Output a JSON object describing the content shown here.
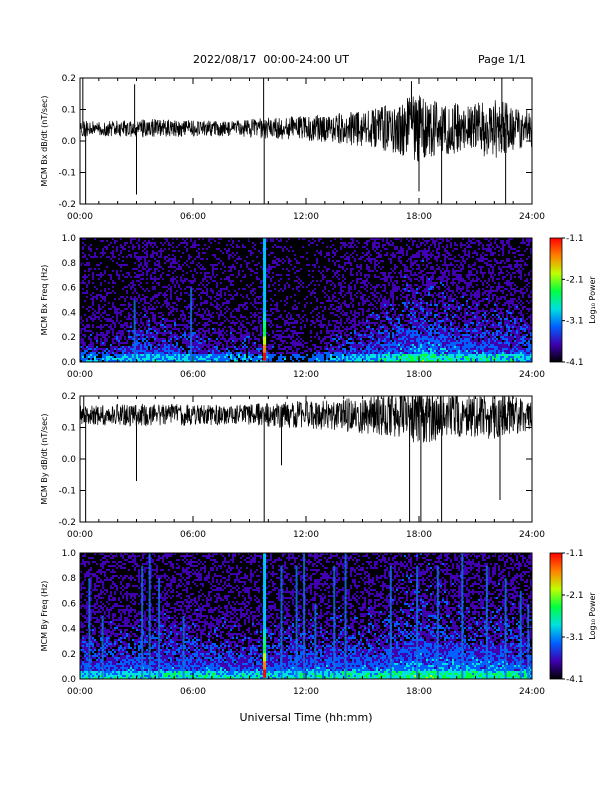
{
  "header": {
    "date_range": "2022/08/17  00:00-24:00 UT",
    "page": "Page 1/1"
  },
  "xlabel": "Universal Time (hh:mm)",
  "chart_data": [
    {
      "type": "line",
      "ylabel": "MCM Bx dB/dt (nT/sec)",
      "xlim": [
        0,
        24
      ],
      "ylim": [
        -0.2,
        0.2
      ],
      "xticks": [
        "00:00",
        "06:00",
        "12:00",
        "18:00",
        "24:00"
      ],
      "yticks": [
        "-0.2",
        "-0.1",
        "0.0",
        "0.1",
        "0.2"
      ],
      "baseline": 0.04,
      "envelope": {
        "x": [
          0,
          2,
          4,
          6,
          8,
          10,
          12,
          14,
          15,
          16,
          17,
          18,
          19,
          20,
          21,
          22,
          23,
          24
        ],
        "half": [
          0.025,
          0.025,
          0.03,
          0.025,
          0.025,
          0.035,
          0.04,
          0.05,
          0.06,
          0.07,
          0.09,
          0.11,
          0.09,
          0.08,
          0.08,
          0.1,
          0.07,
          0.06
        ]
      },
      "spikes": [
        [
          0.15,
          0.2
        ],
        [
          0.3,
          -0.2
        ],
        [
          2.9,
          0.18
        ],
        [
          3.0,
          -0.17
        ],
        [
          9.75,
          0.2
        ],
        [
          9.78,
          -0.2
        ],
        [
          17.6,
          0.19
        ],
        [
          18.0,
          -0.16
        ],
        [
          19.2,
          -0.2
        ],
        [
          22.4,
          0.2
        ],
        [
          22.6,
          -0.2
        ]
      ]
    },
    {
      "type": "heatmap",
      "ylabel": "MCM Bx Freq (Hz)",
      "xlim": [
        0,
        24
      ],
      "ylim": [
        0,
        1.0
      ],
      "xticks": [
        "00:00",
        "06:00",
        "12:00",
        "18:00",
        "24:00"
      ],
      "yticks": [
        "0.0",
        "0.2",
        "0.4",
        "0.6",
        "0.8",
        "1.0"
      ],
      "colorbar": {
        "label": "Log₁₀ Power",
        "range": [
          -4.1,
          -1.1
        ],
        "ticks": [
          "-1.1",
          "-2.1",
          "-3.1",
          "-4.1"
        ],
        "colors": [
          "#000000",
          "#4000b0",
          "#0060ff",
          "#00e0e0",
          "#00ff40",
          "#c0ff00",
          "#ff8000",
          "#ff0000"
        ]
      },
      "activity": {
        "x": [
          0,
          2,
          3,
          6,
          8,
          10,
          12,
          14,
          16,
          18,
          20,
          22,
          24
        ],
        "level": [
          0.35,
          0.35,
          0.5,
          0.45,
          0.35,
          0.3,
          0.2,
          0.45,
          0.55,
          0.75,
          0.6,
          0.6,
          0.5
        ]
      },
      "streaks": [
        [
          2.9,
          0.5
        ],
        [
          5.9,
          0.6
        ],
        [
          9.8,
          1.0
        ]
      ]
    },
    {
      "type": "line",
      "ylabel": "MCM By dB/dt (nT/sec)",
      "xlim": [
        0,
        24
      ],
      "ylim": [
        -0.2,
        0.2
      ],
      "xticks": [
        "00:00",
        "06:00",
        "12:00",
        "18:00",
        "24:00"
      ],
      "yticks": [
        "-0.2",
        "-0.1",
        "0.0",
        "0.1",
        "0.2"
      ],
      "baseline": 0.14,
      "envelope": {
        "x": [
          0,
          2,
          4,
          6,
          8,
          10,
          12,
          14,
          15,
          16,
          17,
          18,
          19,
          20,
          21,
          22,
          23,
          24
        ],
        "half": [
          0.03,
          0.035,
          0.035,
          0.035,
          0.03,
          0.04,
          0.045,
          0.05,
          0.06,
          0.07,
          0.08,
          0.1,
          0.08,
          0.07,
          0.07,
          0.08,
          0.06,
          0.05
        ]
      },
      "spikes": [
        [
          0.2,
          0.2
        ],
        [
          0.3,
          -0.2
        ],
        [
          3.0,
          -0.07
        ],
        [
          9.78,
          -0.2
        ],
        [
          10.7,
          -0.02
        ],
        [
          17.5,
          -0.2
        ],
        [
          18.1,
          -0.2
        ],
        [
          19.2,
          -0.2
        ],
        [
          22.3,
          -0.13
        ]
      ]
    },
    {
      "type": "heatmap",
      "ylabel": "MCM By Freq (Hz)",
      "xlim": [
        0,
        24
      ],
      "ylim": [
        0,
        1.0
      ],
      "xticks": [
        "00:00",
        "06:00",
        "12:00",
        "18:00",
        "24:00"
      ],
      "yticks": [
        "0.0",
        "0.2",
        "0.4",
        "0.6",
        "0.8",
        "1.0"
      ],
      "colorbar": {
        "label": "Log₁₀ Power",
        "range": [
          -4.1,
          -1.1
        ],
        "ticks": [
          "-1.1",
          "-2.1",
          "-3.1",
          "-4.1"
        ],
        "colors": [
          "#000000",
          "#4000b0",
          "#0060ff",
          "#00e0e0",
          "#00ff40",
          "#c0ff00",
          "#ff8000",
          "#ff0000"
        ]
      },
      "activity": {
        "x": [
          0,
          2,
          4,
          6,
          8,
          10,
          12,
          14,
          16,
          18,
          20,
          22,
          24
        ],
        "level": [
          0.55,
          0.55,
          0.6,
          0.6,
          0.55,
          0.55,
          0.6,
          0.6,
          0.65,
          0.8,
          0.7,
          0.7,
          0.6
        ]
      },
      "streaks": [
        [
          0.5,
          0.8
        ],
        [
          1.2,
          0.5
        ],
        [
          3.3,
          0.9
        ],
        [
          3.7,
          1.0
        ],
        [
          4.2,
          0.8
        ],
        [
          5.5,
          0.5
        ],
        [
          9.8,
          1.0
        ],
        [
          10.7,
          0.9
        ],
        [
          11.5,
          0.9
        ],
        [
          11.9,
          1.0
        ],
        [
          12.5,
          0.6
        ],
        [
          13.5,
          0.9
        ],
        [
          14.1,
          1.0
        ],
        [
          16.5,
          0.9
        ],
        [
          17.9,
          0.9
        ],
        [
          19.0,
          0.9
        ],
        [
          20.3,
          1.0
        ],
        [
          21.6,
          0.9
        ],
        [
          22.6,
          0.8
        ],
        [
          23.4,
          0.7
        ],
        [
          23.8,
          0.6
        ]
      ]
    }
  ]
}
